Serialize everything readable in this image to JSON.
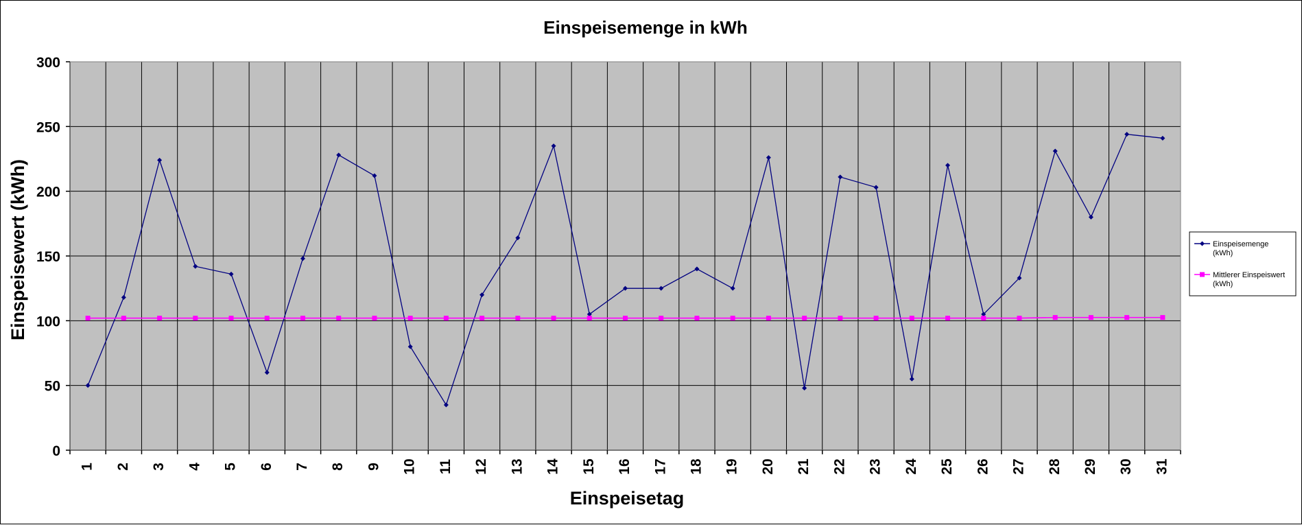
{
  "chart_data": {
    "type": "line",
    "title": "Einspeisemenge in kWh",
    "xlabel": "Einspeisetag",
    "ylabel": "Einspeisewert  (kWh)",
    "x": [
      1,
      2,
      3,
      4,
      5,
      6,
      7,
      8,
      9,
      10,
      11,
      12,
      13,
      14,
      15,
      16,
      17,
      18,
      19,
      20,
      21,
      22,
      23,
      24,
      25,
      26,
      27,
      28,
      29,
      30,
      31
    ],
    "ylim": [
      0,
      300
    ],
    "yticks": [
      0,
      50,
      100,
      150,
      200,
      250,
      300
    ],
    "grid": true,
    "legend_position": "right",
    "plot_background": "#c0c0c0",
    "series": [
      {
        "name": "Einspeisemenge (kWh)",
        "legend_lines": [
          "Einspeisemenge",
          "(kWh)"
        ],
        "color": "#000080",
        "marker": "diamond",
        "values": [
          50,
          118,
          224,
          142,
          136,
          60,
          148,
          228,
          212,
          80,
          35,
          120,
          164,
          235,
          105,
          125,
          125,
          140,
          125,
          226,
          48,
          211,
          203,
          55,
          220,
          105,
          133,
          231,
          180,
          244,
          241
        ]
      },
      {
        "name": "Mittlerer Einspeiswert (kWh)",
        "legend_lines": [
          "Mittlerer Einspeiswert",
          "(kWh)"
        ],
        "color": "#ff00ff",
        "marker": "square",
        "values": [
          102,
          102,
          102,
          102,
          102,
          102,
          102,
          102,
          102,
          102,
          102,
          102,
          102,
          102,
          102,
          102,
          102,
          102,
          102,
          102,
          102,
          102,
          102,
          102,
          102,
          102,
          102,
          102.5,
          102.5,
          102.5,
          102.5
        ]
      }
    ]
  }
}
